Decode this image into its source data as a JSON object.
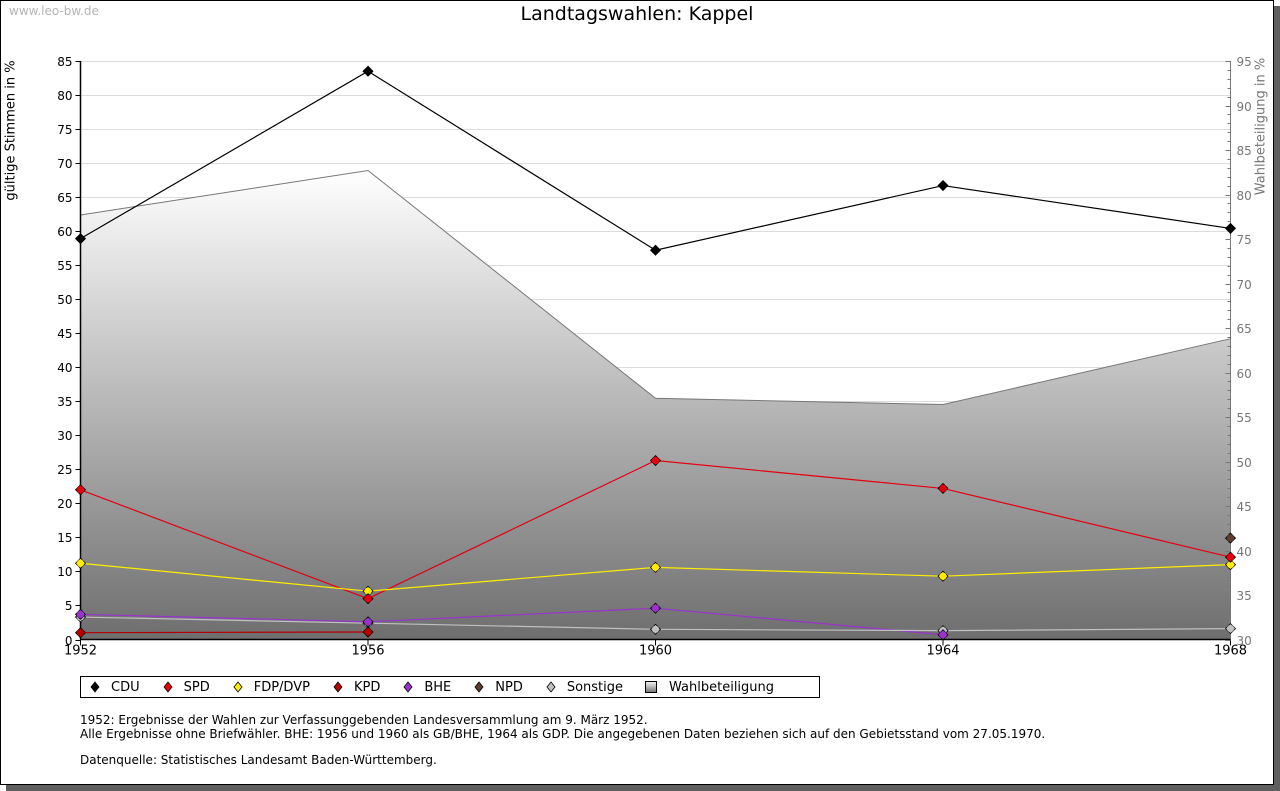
{
  "watermark": "www.leo-bw.de",
  "chart_data": {
    "type": "line",
    "title": "Landtagswahlen: Kappel",
    "ylabel": "gültige Stimmen in %",
    "y2label": "Wahlbeteiligung in %",
    "xlabel": "",
    "x": [
      "1952",
      "1956",
      "1960",
      "1964",
      "1968"
    ],
    "ylim": [
      0,
      85
    ],
    "y2lim": [
      30,
      95
    ],
    "yticks": [
      "0",
      "5",
      "10",
      "15",
      "20",
      "25",
      "30",
      "35",
      "40",
      "45",
      "50",
      "55",
      "60",
      "65",
      "70",
      "75",
      "80",
      "85"
    ],
    "y2ticks": [
      "30",
      "35",
      "40",
      "45",
      "50",
      "55",
      "60",
      "65",
      "70",
      "75",
      "80",
      "85",
      "90",
      "95"
    ],
    "grid": true,
    "series": [
      {
        "name": "CDU",
        "color": "#000000",
        "values": [
          58.9,
          83.5,
          57.2,
          66.7,
          60.4
        ]
      },
      {
        "name": "SPD",
        "color": "#e3000f",
        "values": [
          22.0,
          6.0,
          26.3,
          22.2,
          12.1
        ]
      },
      {
        "name": "FDP/DVP",
        "color": "#ffed00",
        "values": [
          11.2,
          7.1,
          10.6,
          9.3,
          11.0
        ]
      },
      {
        "name": "KPD",
        "color": "#b30000",
        "values": [
          1.0,
          1.1,
          null,
          null,
          null
        ]
      },
      {
        "name": "BHE",
        "color": "#9933cc",
        "values": [
          3.7,
          2.6,
          4.6,
          0.7,
          null
        ]
      },
      {
        "name": "NPD",
        "color": "#5c3d2e",
        "values": [
          null,
          null,
          null,
          null,
          14.9
        ]
      },
      {
        "name": "Sonstige",
        "color": "#c0c0c0",
        "values": [
          3.3,
          2.4,
          1.5,
          1.3,
          1.6
        ]
      }
    ],
    "turnout": {
      "name": "Wahlbeteiligung",
      "axis": "right",
      "type": "area",
      "values": [
        77.7,
        82.7,
        57.1,
        56.4,
        63.8
      ]
    },
    "legend_position": "bottom-left"
  },
  "notes": {
    "line1": "1952: Ergebnisse der Wahlen zur Verfassunggebenden Landesversammlung am 9. März 1952.",
    "line2": "Alle Ergebnisse ohne Briefwähler. BHE: 1956 und 1960 als GB/BHE, 1964 als GDP. Die angegebenen Daten beziehen sich auf den Gebietsstand vom 27.05.1970.",
    "source": "Datenquelle: Statistisches Landesamt Baden-Württemberg."
  }
}
